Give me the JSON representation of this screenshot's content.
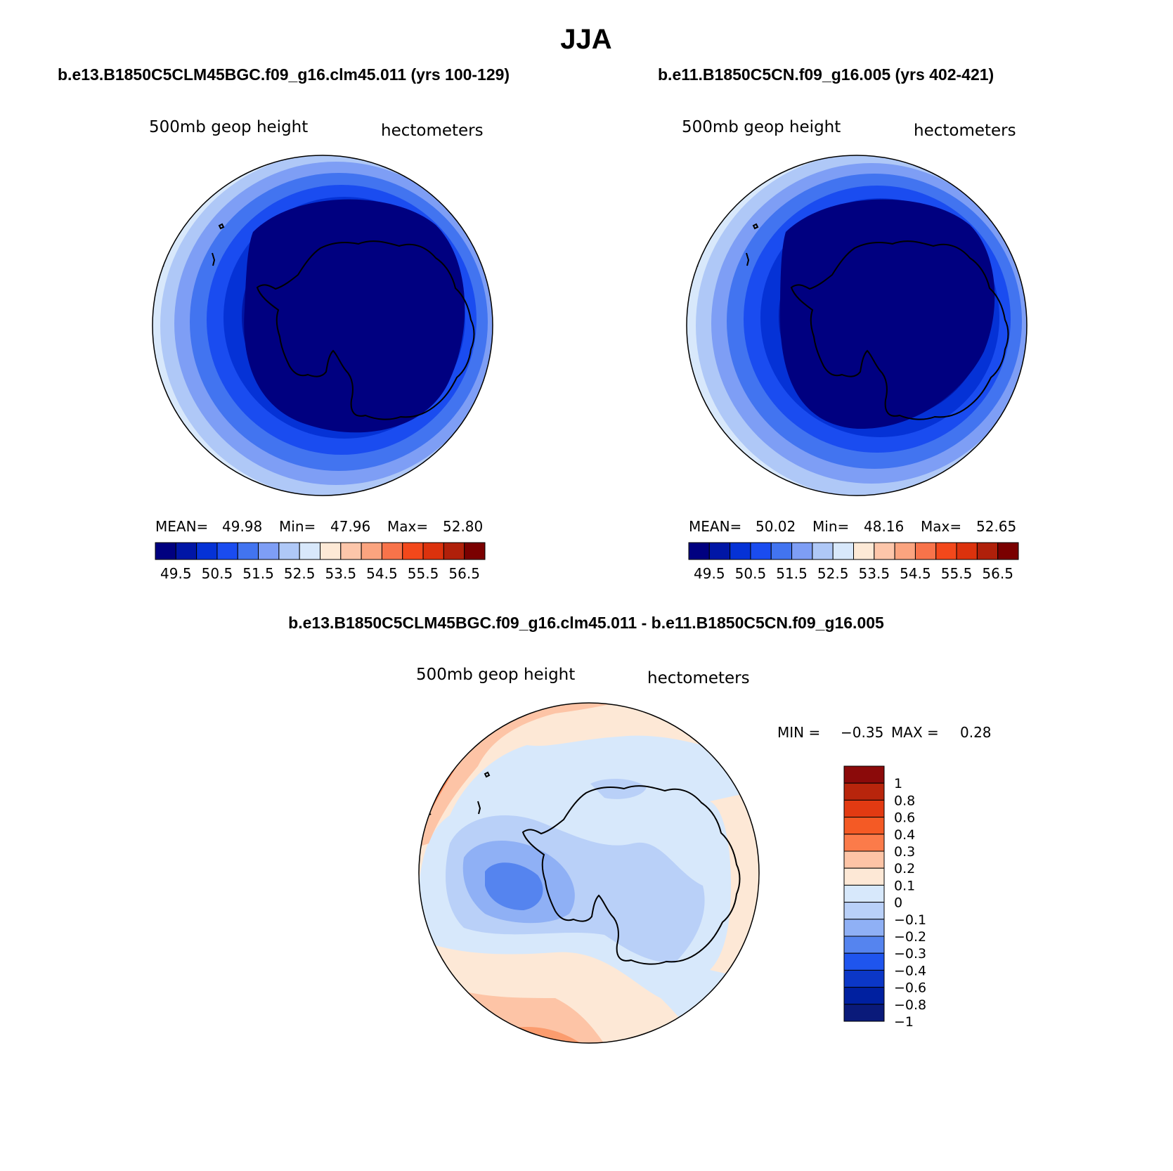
{
  "title": "JJA",
  "panels": [
    {
      "case_title": "b.e13.B1850C5CLM45BGC.f09_g16.clm45.011 (yrs 100-129)",
      "variable": "500mb geop height",
      "units": "hectometers",
      "stats": {
        "mean_label": "MEAN=",
        "mean": "49.98",
        "min_label": "Min=",
        "min": "47.96",
        "max_label": "Max=",
        "max": "52.80"
      }
    },
    {
      "case_title": "b.e11.B1850C5CN.f09_g16.005 (yrs 402-421)",
      "variable": "500mb geop height",
      "units": "hectometers",
      "stats": {
        "mean_label": "MEAN=",
        "mean": "50.02",
        "min_label": "Min=",
        "min": "48.16",
        "max_label": "Max=",
        "max": "52.65"
      }
    }
  ],
  "field_colorbar": {
    "colors": [
      "#000080",
      "#0016a6",
      "#0532d6",
      "#1a4cf0",
      "#4274f0",
      "#7e9ef5",
      "#afc8f7",
      "#d8e8fb",
      "#fde9d6",
      "#fdc6aa",
      "#fba47f",
      "#f8734a",
      "#f3481b",
      "#dc320d",
      "#b0200a",
      "#7a0000"
    ],
    "tick_labels": [
      "49.5",
      "50.5",
      "51.5",
      "52.5",
      "53.5",
      "54.5",
      "55.5",
      "56.5"
    ]
  },
  "difference_panel": {
    "title": "b.e13.B1850C5CLM45BGC.f09_g16.clm45.011 - b.e11.B1850C5CN.f09_g16.005",
    "variable": "500mb geop height",
    "units": "hectometers",
    "min_label": "MIN =",
    "min": "−0.35",
    "max_label": "MAX =",
    "max": "0.28"
  },
  "diff_colorbar": {
    "colors_top_to_bottom": [
      "#8b0a0a",
      "#b8250c",
      "#e23a12",
      "#f45a25",
      "#fb7b4a",
      "#fdc4a6",
      "#fde8d6",
      "#d7e8fb",
      "#b9d0f8",
      "#8fb0f5",
      "#5584ef",
      "#1f55ee",
      "#0b37c7",
      "#0020a0",
      "#0a1a7a"
    ],
    "labels": [
      "1",
      "0.8",
      "0.6",
      "0.4",
      "0.3",
      "0.2",
      "0.1",
      "0",
      "−0.1",
      "−0.2",
      "−0.3",
      "−0.4",
      "−0.6",
      "−0.8",
      "−1"
    ]
  },
  "colors": {
    "outline": "#000000",
    "background": "#ffffff"
  }
}
